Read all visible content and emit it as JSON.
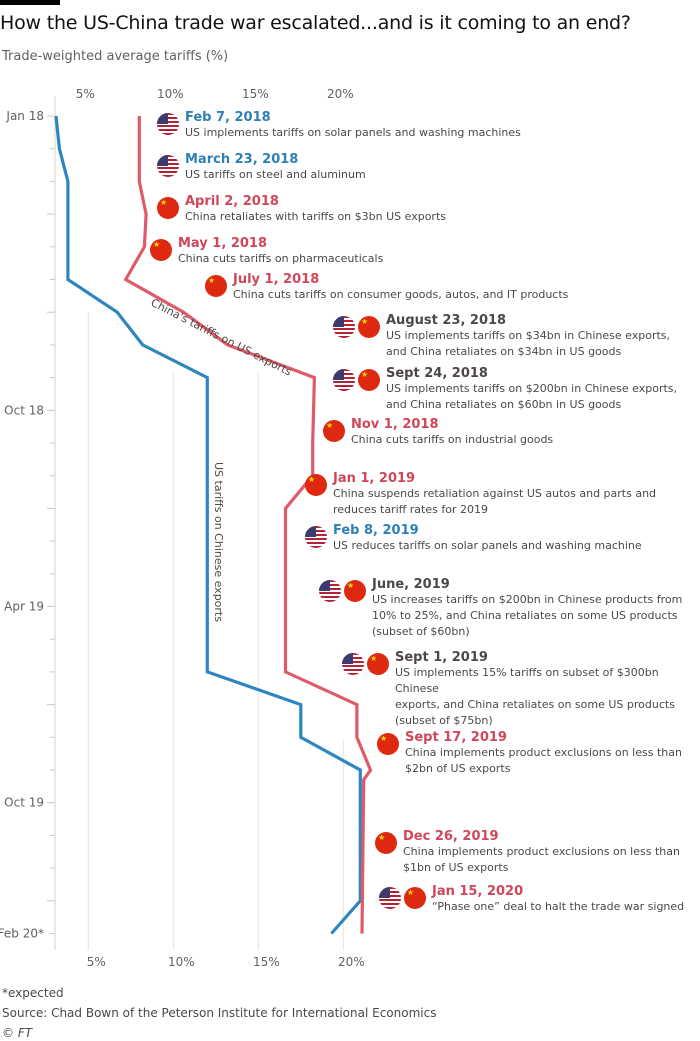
{
  "title": "How the US-China trade war escalated...and is it coming to an end?",
  "subtitle": "Trade-weighted average tariffs (%)",
  "footnote": "*expected",
  "source": "Source: Chad Bown of the Peterson Institute for International Economics",
  "copyright": "© FT",
  "colors": {
    "us": "#2e86c1",
    "china": "#e05a68",
    "us_text": "#2e7fb5",
    "china_text": "#d0465a",
    "both_text": "#4d4845"
  },
  "chart_data": {
    "type": "line",
    "orientation": "vertical-time",
    "title": "How the US-China trade war escalated...and is it coming to an end?",
    "xlabel": "Trade-weighted average tariffs (%)",
    "xlim": [
      0,
      22
    ],
    "x_ticks": [
      "5%",
      "10%",
      "15%",
      "20%"
    ],
    "y_ticks": [
      "Jan 18",
      "Oct 18",
      "Apr 19",
      "Oct 19",
      "Feb 20*"
    ],
    "y_range_months": [
      0,
      25
    ],
    "series": [
      {
        "name": "US tariffs on Chinese exports",
        "color": "#2e86c1",
        "points": [
          {
            "month": 0,
            "value": 3.1
          },
          {
            "month": 1,
            "value": 3.3
          },
          {
            "month": 2,
            "value": 3.8
          },
          {
            "month": 5,
            "value": 3.8
          },
          {
            "month": 6,
            "value": 6.7
          },
          {
            "month": 7,
            "value": 8.2
          },
          {
            "month": 8,
            "value": 12.0
          },
          {
            "month": 17,
            "value": 12.0
          },
          {
            "month": 18,
            "value": 17.5
          },
          {
            "month": 19,
            "value": 17.5
          },
          {
            "month": 20,
            "value": 21.0
          },
          {
            "month": 24,
            "value": 21.0
          },
          {
            "month": 25,
            "value": 19.3
          }
        ]
      },
      {
        "name": "China's tariffs on US exports",
        "color": "#e05a68",
        "points": [
          {
            "month": 0,
            "value": 8.0
          },
          {
            "month": 2,
            "value": 8.0
          },
          {
            "month": 3,
            "value": 8.4
          },
          {
            "month": 4,
            "value": 8.3
          },
          {
            "month": 5,
            "value": 7.2
          },
          {
            "month": 6,
            "value": 10.6
          },
          {
            "month": 7,
            "value": 13.2
          },
          {
            "month": 8,
            "value": 18.3
          },
          {
            "month": 10,
            "value": 18.2
          },
          {
            "month": 11,
            "value": 18.2
          },
          {
            "month": 12,
            "value": 16.6
          },
          {
            "month": 17,
            "value": 16.6
          },
          {
            "month": 18,
            "value": 20.8
          },
          {
            "month": 19,
            "value": 20.8
          },
          {
            "month": 20,
            "value": 21.6
          },
          {
            "month": 20.3,
            "value": 21.2
          },
          {
            "month": 25,
            "value": 21.1
          }
        ]
      }
    ],
    "annotations": [
      "US tariffs on Chinese exports",
      "China's tariffs on US exports"
    ]
  },
  "events": [
    {
      "date": "Feb 7, 2018",
      "desc": [
        "US implements tariffs on solar panels and washing machines"
      ],
      "who": "us",
      "flags": [
        "us"
      ]
    },
    {
      "date": "March 23, 2018",
      "desc": [
        "US tariffs on steel and aluminum"
      ],
      "who": "us",
      "flags": [
        "us"
      ]
    },
    {
      "date": "April 2, 2018",
      "desc": [
        "China retaliates with tariffs on $3bn US exports"
      ],
      "who": "china",
      "flags": [
        "cn"
      ]
    },
    {
      "date": "May 1, 2018",
      "desc": [
        "China cuts tariffs on pharmaceuticals"
      ],
      "who": "china",
      "flags": [
        "cn"
      ]
    },
    {
      "date": "July 1, 2018",
      "desc": [
        "China cuts tariffs on consumer goods, autos, and IT products"
      ],
      "who": "china",
      "flags": [
        "cn"
      ]
    },
    {
      "date": "August 23, 2018",
      "desc": [
        "US implements tariffs on $34bn in Chinese exports,",
        "and China retaliates on $34bn in US goods"
      ],
      "who": "both",
      "flags": [
        "us",
        "cn"
      ]
    },
    {
      "date": "Sept 24, 2018",
      "desc": [
        "US implements tariffs on $200bn in Chinese exports,",
        "and China retaliates on $60bn in US goods"
      ],
      "who": "both",
      "flags": [
        "us",
        "cn"
      ]
    },
    {
      "date": "Nov 1, 2018",
      "desc": [
        "China cuts tariffs on industrial goods"
      ],
      "who": "china",
      "flags": [
        "cn"
      ]
    },
    {
      "date": "Jan 1, 2019",
      "desc": [
        "China suspends retaliation against US autos and parts and",
        "reduces tariff rates for 2019"
      ],
      "who": "china",
      "flags": [
        "cn"
      ]
    },
    {
      "date": "Feb 8, 2019",
      "desc": [
        "US reduces tariffs on solar panels and washing machine"
      ],
      "who": "us",
      "flags": [
        "us"
      ]
    },
    {
      "date": "June, 2019",
      "desc": [
        "US increases tariffs on $200bn in Chinese products from",
        "10% to 25%, and China retaliates on some US products",
        "(subset of $60bn)"
      ],
      "who": "both",
      "flags": [
        "us",
        "cn"
      ]
    },
    {
      "date": "Sept 1, 2019",
      "desc": [
        "US implements 15% tariffs on subset of $300bn Chinese",
        "exports, and China retaliates on some US products",
        "(subset of $75bn)"
      ],
      "who": "both",
      "flags": [
        "us",
        "cn"
      ]
    },
    {
      "date": "Sept 17, 2019",
      "desc": [
        "China implements product exclusions on less than",
        "$2bn of US exports"
      ],
      "who": "china",
      "flags": [
        "cn"
      ]
    },
    {
      "date": "Dec 26, 2019",
      "desc": [
        "China implements product exclusions on less than",
        "$1bn of US exports"
      ],
      "who": "china",
      "flags": [
        "cn"
      ]
    },
    {
      "date": "Jan 15, 2020",
      "desc": [
        "“Phase one” deal to halt the trade war signed"
      ],
      "who": "china",
      "flags": [
        "us",
        "cn"
      ]
    }
  ]
}
